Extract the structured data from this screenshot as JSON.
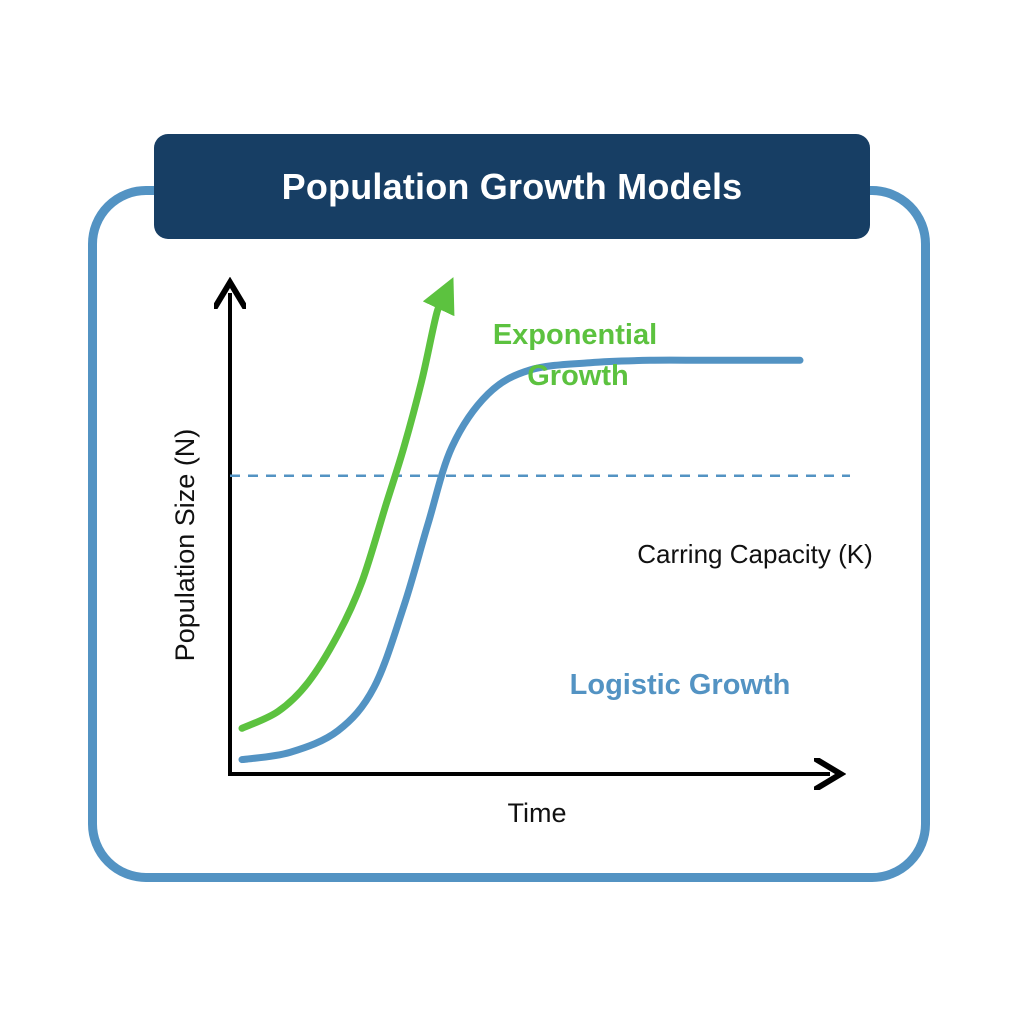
{
  "title": "Population Growth Models",
  "colors": {
    "frame": "#5393c3",
    "title_bar": "#173e64",
    "title_text": "#ffffff",
    "exponential": "#5cc23f",
    "logistic": "#5393c3",
    "axis": "#000000"
  },
  "chart_data": {
    "type": "line",
    "title": "Population Growth Models",
    "xlabel": "Time",
    "ylabel": "Population Size (N)",
    "xlim": [
      0,
      10
    ],
    "ylim": [
      0,
      10
    ],
    "grid": false,
    "ticks": "none",
    "series": [
      {
        "name": "Exponential Growth",
        "label_lines": [
          "Exponential",
          "Growth"
        ],
        "color": "#5cc23f",
        "arrow_end": true,
        "x": [
          0.2,
          0.8,
          1.3,
          1.8,
          2.2,
          2.6,
          2.9,
          3.2,
          3.45,
          3.6
        ],
        "y": [
          0.95,
          1.3,
          1.9,
          2.9,
          4.0,
          5.6,
          6.8,
          8.2,
          9.6,
          10.0
        ]
      },
      {
        "name": "Logistic Growth",
        "label_lines": [
          "Logistic Growth"
        ],
        "color": "#5393c3",
        "arrow_end": false,
        "x": [
          0.2,
          1.0,
          1.8,
          2.4,
          2.9,
          3.3,
          3.7,
          4.3,
          5.0,
          6.0,
          7.0,
          8.0,
          9.5
        ],
        "y": [
          0.3,
          0.45,
          0.9,
          1.8,
          3.5,
          5.2,
          6.8,
          7.9,
          8.4,
          8.55,
          8.6,
          8.6,
          8.6
        ]
      }
    ],
    "reference_lines": [
      {
        "label": "Carring Capacity (K)",
        "y": 6.2,
        "style": "dashed",
        "color": "#5393c3"
      }
    ]
  }
}
